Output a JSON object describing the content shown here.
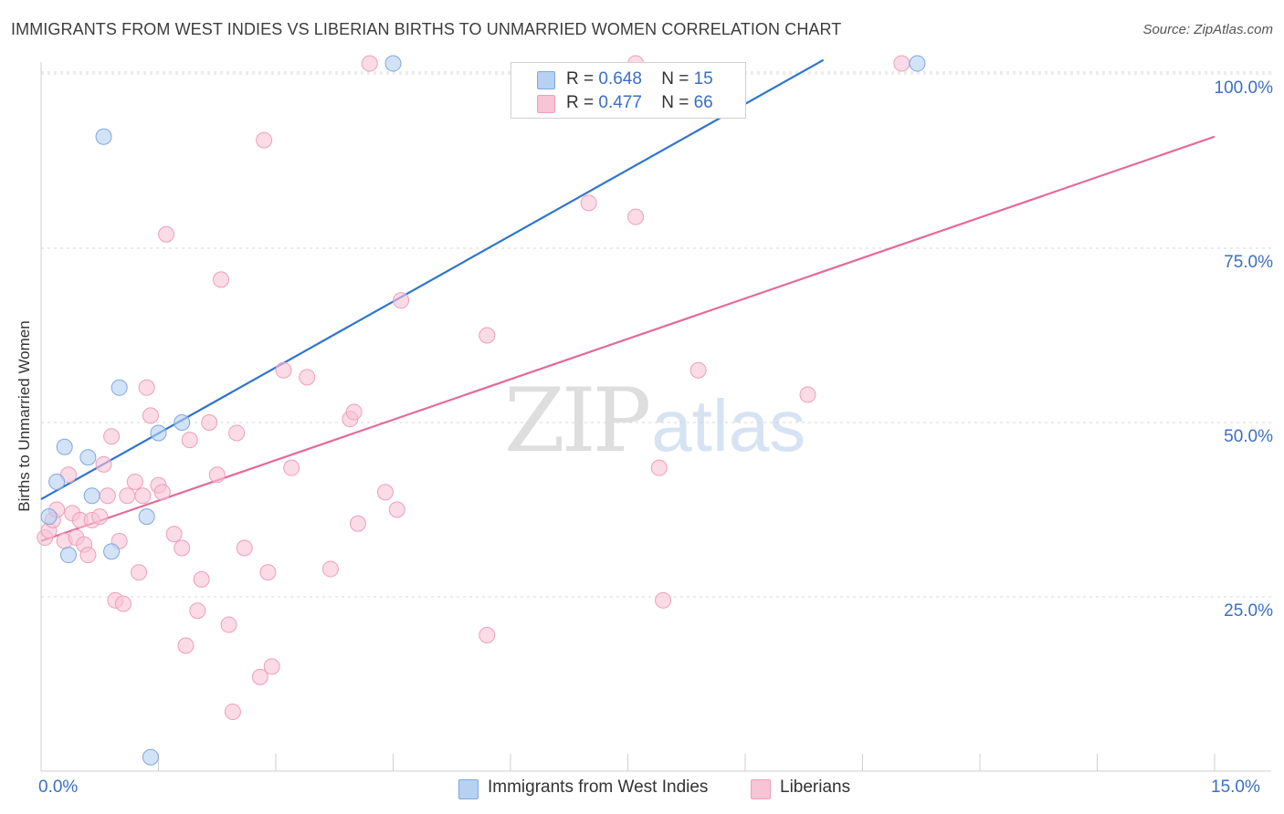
{
  "header": {
    "title": "IMMIGRANTS FROM WEST INDIES VS LIBERIAN BIRTHS TO UNMARRIED WOMEN CORRELATION CHART",
    "source": "Source: ZipAtlas.com"
  },
  "watermark": {
    "zip": "ZIP",
    "atlas": "atlas"
  },
  "legend_top": {
    "rows": [
      {
        "r_label": "R =",
        "r_value": "0.648",
        "n_label": "N =",
        "n_value": "15"
      },
      {
        "r_label": "R =",
        "r_value": "0.477",
        "n_label": "N =",
        "n_value": "66"
      }
    ]
  },
  "legend_bottom": {
    "items": [
      {
        "label": "Immigrants from West Indies"
      },
      {
        "label": "Liberians"
      }
    ]
  },
  "axes": {
    "y_ticks": [
      "100.0%",
      "75.0%",
      "50.0%",
      "25.0%"
    ],
    "x_ticks": [
      "0.0%",
      "15.0%"
    ]
  },
  "colors": {
    "blue_fill": "#b6d1f2",
    "blue_stroke": "#7ea7e0",
    "blue_line": "#2f74d0",
    "pink_fill": "#f8c3d4",
    "pink_stroke": "#ee9fbb",
    "pink_line": "#e46a95",
    "grid": "#d9d9d9",
    "accent_text": "#3a6fc4"
  },
  "chart_data": {
    "type": "scatter",
    "title": "IMMIGRANTS FROM WEST INDIES VS LIBERIAN BIRTHS TO UNMARRIED WOMEN CORRELATION CHART",
    "xlabel": "",
    "ylabel": "Births to Unmarried Women",
    "xlim": [
      0,
      15
    ],
    "ylim": [
      0,
      102
    ],
    "x_ticks": [
      0,
      15
    ],
    "y_ticks": [
      25,
      50,
      75,
      100
    ],
    "grid": true,
    "legend_position": "top-center",
    "series": [
      {
        "name": "Immigrants from West Indies",
        "color": "blue",
        "r": 0.648,
        "n": 15,
        "trend": {
          "x": [
            0,
            10
          ],
          "y": [
            39,
            102
          ]
        },
        "points": [
          [
            0.1,
            36.5
          ],
          [
            0.2,
            41.5
          ],
          [
            0.3,
            46.5
          ],
          [
            0.35,
            31
          ],
          [
            0.6,
            45
          ],
          [
            0.65,
            39.5
          ],
          [
            0.8,
            91
          ],
          [
            0.9,
            31.5
          ],
          [
            1.0,
            55
          ],
          [
            1.35,
            36.5
          ],
          [
            1.5,
            48.5
          ],
          [
            1.8,
            50
          ],
          [
            4.5,
            101.5
          ],
          [
            11.2,
            101.5
          ],
          [
            1.4,
            2
          ]
        ]
      },
      {
        "name": "Liberians",
        "color": "pink",
        "r": 0.477,
        "n": 66,
        "trend": {
          "x": [
            0,
            15
          ],
          "y": [
            33,
            91
          ]
        },
        "points": [
          [
            0.05,
            33.5
          ],
          [
            0.1,
            34.5
          ],
          [
            0.15,
            36
          ],
          [
            0.2,
            37.5
          ],
          [
            0.3,
            33
          ],
          [
            0.35,
            42.5
          ],
          [
            0.4,
            37
          ],
          [
            0.45,
            33.5
          ],
          [
            0.5,
            36
          ],
          [
            0.55,
            32.5
          ],
          [
            0.6,
            31
          ],
          [
            0.65,
            36
          ],
          [
            0.75,
            36.5
          ],
          [
            0.8,
            44
          ],
          [
            0.85,
            39.5
          ],
          [
            0.9,
            48
          ],
          [
            0.95,
            24.5
          ],
          [
            1.0,
            33
          ],
          [
            1.05,
            24
          ],
          [
            1.1,
            39.5
          ],
          [
            1.2,
            41.5
          ],
          [
            1.25,
            28.5
          ],
          [
            1.3,
            39.5
          ],
          [
            1.35,
            55
          ],
          [
            1.4,
            51
          ],
          [
            1.5,
            41
          ],
          [
            1.55,
            40
          ],
          [
            1.6,
            77
          ],
          [
            1.7,
            34
          ],
          [
            1.8,
            32
          ],
          [
            1.85,
            18
          ],
          [
            1.9,
            47.5
          ],
          [
            2.0,
            23
          ],
          [
            2.05,
            27.5
          ],
          [
            2.15,
            50
          ],
          [
            2.25,
            42.5
          ],
          [
            2.3,
            70.5
          ],
          [
            2.4,
            21
          ],
          [
            2.45,
            8.5
          ],
          [
            2.5,
            48.5
          ],
          [
            2.6,
            32
          ],
          [
            2.8,
            13.5
          ],
          [
            2.85,
            90.5
          ],
          [
            2.9,
            28.5
          ],
          [
            2.95,
            15
          ],
          [
            3.1,
            57.5
          ],
          [
            3.2,
            43.5
          ],
          [
            3.4,
            56.5
          ],
          [
            3.7,
            29
          ],
          [
            3.95,
            50.5
          ],
          [
            4.0,
            51.5
          ],
          [
            4.05,
            35.5
          ],
          [
            4.2,
            101.5
          ],
          [
            4.4,
            40
          ],
          [
            4.55,
            37.5
          ],
          [
            4.6,
            67.5
          ],
          [
            5.7,
            62.5
          ],
          [
            5.7,
            19.5
          ],
          [
            7.0,
            81.5
          ],
          [
            7.6,
            79.5
          ],
          [
            7.9,
            43.5
          ],
          [
            7.95,
            24.5
          ],
          [
            8.4,
            57.5
          ],
          [
            9.8,
            54
          ],
          [
            11.0,
            101.5
          ],
          [
            7.6,
            101.5
          ]
        ]
      }
    ]
  }
}
